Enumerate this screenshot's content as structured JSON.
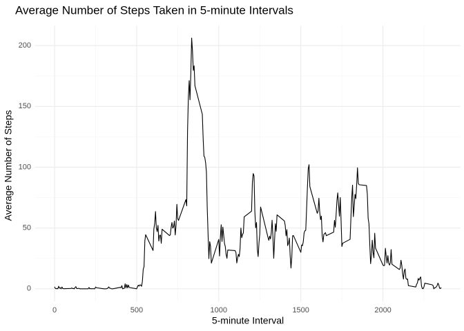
{
  "chart_data": {
    "type": "line",
    "title": "Average Number of Steps Taken in 5-minute Intervals",
    "x_label": "5-minute Interval",
    "y_label": "Average Number of Steps",
    "xlim": [
      -117.75,
      2472.75
    ],
    "ylim": [
      -10.3,
      216.5
    ],
    "xticks": [
      0,
      500,
      1000,
      1500,
      2000
    ],
    "yticks": [
      0,
      50,
      100,
      150,
      200
    ],
    "xminorticks": [
      250,
      750,
      1250,
      1750,
      2250
    ],
    "yminorticks": [
      25,
      75,
      125,
      175
    ],
    "grid": true,
    "series": [
      {
        "color": "#000000",
        "x": [
          0,
          5,
          10,
          15,
          20,
          25,
          30,
          35,
          40,
          45,
          50,
          55,
          100,
          105,
          110,
          115,
          120,
          125,
          130,
          135,
          140,
          145,
          150,
          155,
          200,
          205,
          210,
          215,
          220,
          225,
          230,
          235,
          240,
          245,
          250,
          255,
          300,
          305,
          310,
          315,
          320,
          325,
          330,
          335,
          340,
          345,
          350,
          355,
          400,
          405,
          410,
          415,
          420,
          425,
          430,
          435,
          440,
          445,
          450,
          455,
          500,
          505,
          510,
          515,
          520,
          525,
          530,
          535,
          540,
          545,
          550,
          555,
          600,
          605,
          610,
          615,
          620,
          625,
          630,
          635,
          640,
          645,
          650,
          655,
          700,
          705,
          710,
          715,
          720,
          725,
          730,
          735,
          740,
          745,
          750,
          755,
          800,
          805,
          810,
          815,
          820,
          825,
          830,
          835,
          840,
          845,
          850,
          855,
          900,
          905,
          910,
          915,
          920,
          925,
          930,
          935,
          940,
          945,
          950,
          955,
          1000,
          1005,
          1010,
          1015,
          1020,
          1025,
          1030,
          1035,
          1040,
          1045,
          1050,
          1055,
          1100,
          1105,
          1110,
          1115,
          1120,
          1125,
          1130,
          1135,
          1140,
          1145,
          1150,
          1155,
          1200,
          1205,
          1210,
          1215,
          1220,
          1225,
          1230,
          1235,
          1240,
          1245,
          1250,
          1255,
          1300,
          1305,
          1310,
          1315,
          1320,
          1325,
          1330,
          1335,
          1340,
          1345,
          1350,
          1355,
          1400,
          1405,
          1410,
          1415,
          1420,
          1425,
          1430,
          1435,
          1440,
          1445,
          1450,
          1455,
          1500,
          1505,
          1510,
          1515,
          1520,
          1525,
          1530,
          1535,
          1540,
          1545,
          1550,
          1555,
          1600,
          1605,
          1610,
          1615,
          1620,
          1625,
          1630,
          1635,
          1640,
          1645,
          1650,
          1655,
          1700,
          1705,
          1710,
          1715,
          1720,
          1725,
          1730,
          1735,
          1740,
          1745,
          1750,
          1755,
          1800,
          1805,
          1810,
          1815,
          1820,
          1825,
          1830,
          1835,
          1840,
          1845,
          1850,
          1855,
          1900,
          1905,
          1910,
          1915,
          1920,
          1925,
          1930,
          1935,
          1940,
          1945,
          1950,
          1955,
          2000,
          2005,
          2010,
          2015,
          2020,
          2025,
          2030,
          2035,
          2040,
          2045,
          2050,
          2055,
          2100,
          2105,
          2110,
          2115,
          2120,
          2125,
          2130,
          2135,
          2140,
          2145,
          2150,
          2155,
          2200,
          2205,
          2210,
          2215,
          2220,
          2225,
          2230,
          2235,
          2240,
          2245,
          2250,
          2255,
          2300,
          2305,
          2310,
          2315,
          2320,
          2325,
          2330,
          2335,
          2340,
          2345,
          2350,
          2355
        ],
        "values": [
          1.7,
          0.3,
          0.1,
          0.2,
          0.1,
          2.1,
          0.5,
          0.9,
          0,
          1.5,
          0.3,
          0.1,
          0.3,
          0.7,
          0.2,
          0.3,
          0,
          1.1,
          1.8,
          0.2,
          0.2,
          0.4,
          0.3,
          0,
          0,
          0,
          1.1,
          0,
          0.2,
          0.1,
          0,
          0.2,
          0,
          0,
          1.5,
          0.9,
          0,
          0,
          0,
          0,
          0.2,
          0.6,
          1.6,
          0.6,
          0.5,
          0.1,
          0,
          0,
          1.2,
          0.9,
          2.6,
          0,
          0.3,
          0.4,
          4.1,
          0.7,
          3.5,
          0.8,
          3.1,
          1.1,
          0,
          1.6,
          3,
          2.2,
          3.3,
          3,
          2.1,
          6.1,
          16,
          18.3,
          39.5,
          44.5,
          31.5,
          49.3,
          53.8,
          63.5,
          50,
          47.1,
          52.2,
          39.3,
          44,
          44.2,
          37.4,
          49,
          43.8,
          44.4,
          50.5,
          54.5,
          49.9,
          51,
          55.7,
          44.3,
          52.3,
          69.5,
          57.8,
          56.2,
          73.4,
          68.2,
          129.4,
          157.5,
          171.2,
          155.4,
          177.3,
          206.2,
          195.9,
          179.6,
          183.4,
          167,
          143.5,
          124,
          109.1,
          108.1,
          103.7,
          96,
          66.2,
          45.2,
          24.8,
          38.8,
          35,
          21.1,
          40.6,
          27,
          42.4,
          52.7,
          38.9,
          50.8,
          44.3,
          37.4,
          34.7,
          28.3,
          25.1,
          31.9,
          31.4,
          29.7,
          21.3,
          25.5,
          28.4,
          26.5,
          33.4,
          50,
          42,
          44.6,
          46,
          59.2,
          63.9,
          87.7,
          94.8,
          92.8,
          63.4,
          50.2,
          54.5,
          32.4,
          26.5,
          37.7,
          45.1,
          67.3,
          42.3,
          39.9,
          43.3,
          41,
          46.2,
          56.4,
          42.8,
          25.1,
          40,
          53.5,
          47.3,
          60.8,
          55.8,
          52,
          43.6,
          48.7,
          35.5,
          37.5,
          41.8,
          27.5,
          17.1,
          26.1,
          43.6,
          43.8,
          30,
          36.1,
          35.5,
          38.8,
          46,
          47.8,
          48.1,
          65.3,
          82.9,
          98.7,
          102.1,
          84,
          62.1,
          64.1,
          74.5,
          63.2,
          56.9,
          59.8,
          43.9,
          38.6,
          44.7,
          45.5,
          46.2,
          43.7,
          46.6,
          56.3,
          50.7,
          61.2,
          72.7,
          78.9,
          68.9,
          59.7,
          75.1,
          56.5,
          34.8,
          37.5,
          40.7,
          58,
          74.7,
          85.3,
          59.3,
          67.8,
          77.7,
          74.2,
          85.3,
          99.5,
          86.6,
          85.6,
          84.9,
          77.8,
          58,
          53.4,
          36.3,
          20.7,
          27.4,
          40,
          30.2,
          25.5,
          45.7,
          33.5,
          19.6,
          19,
          19.3,
          33.3,
          26.8,
          21.2,
          27.3,
          21.3,
          19.5,
          21.3,
          32.3,
          20.2,
          15.9,
          17.2,
          23.5,
          19.2,
          12.5,
          8,
          14.7,
          16.3,
          8.7,
          7.8,
          8.1,
          2.6,
          1.5,
          3.7,
          4.8,
          8.5,
          7.1,
          8.7,
          9.8,
          2.2,
          0.3,
          0.1,
          1.6,
          4.6,
          3.3,
          2.8,
          0,
          0.8,
          1,
          1.6,
          2.6,
          4.7,
          3.3,
          0.6,
          0.2,
          1.1
        ]
      }
    ]
  }
}
